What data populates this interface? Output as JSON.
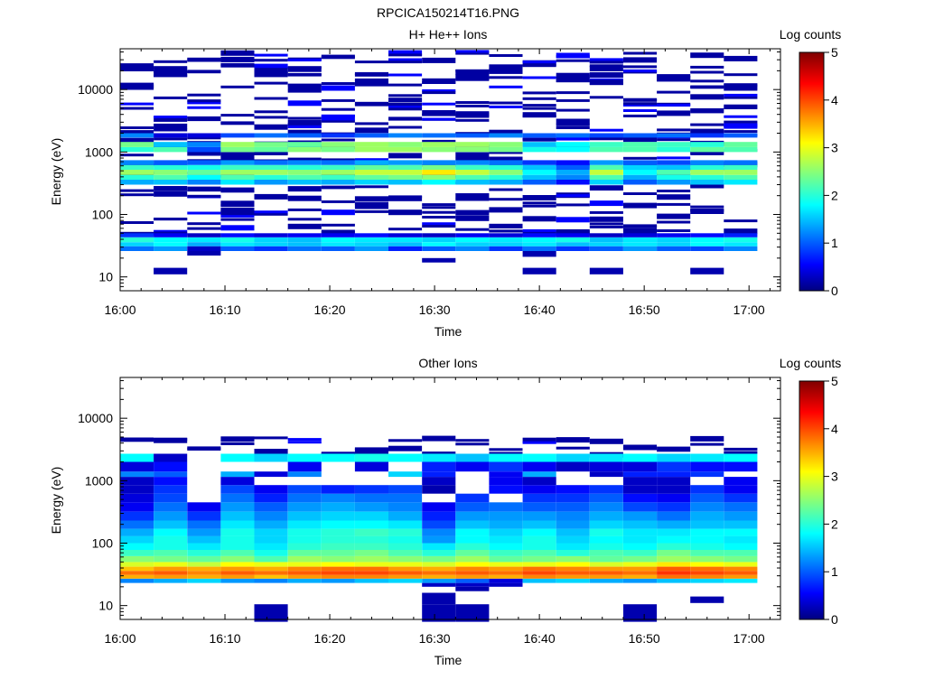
{
  "figure_title": "RPCICA150214T16.PNG",
  "colormap": [
    "#00007f",
    "#0000ff",
    "#00ffff",
    "#ffff00",
    "#ff0000",
    "#7f0000"
  ],
  "chart_data": [
    {
      "type": "heatmap",
      "title": "H+ He++ Ions",
      "xlabel": "Time",
      "ylabel": "Energy (eV)",
      "colorbar_label": "Log counts",
      "colorbar_ticks": [
        "0",
        "1",
        "2",
        "3",
        "4",
        "5"
      ],
      "clim": [
        0,
        5
      ],
      "x_ticks": [
        "16:00",
        "16:10",
        "16:20",
        "16:30",
        "16:40",
        "16:50",
        "17:00"
      ],
      "xlim_min": [
        0,
        63
      ],
      "y_scale": "log",
      "y_ticks": [
        "10",
        "100",
        "1000",
        "10000"
      ],
      "ylim": [
        6,
        45000
      ],
      "time_bins_min": [
        0,
        3.2,
        6.4,
        9.6,
        12.8,
        16,
        19.2,
        22.4,
        25.6,
        28.8,
        32,
        35.2,
        38.4,
        41.6,
        44.8,
        48,
        51.2,
        54.4,
        57.6,
        60.8
      ],
      "bands": [
        {
          "e": [
            26,
            31
          ],
          "v": [
            1.1,
            1.3,
            0.3,
            1.0,
            0.8,
            1.1,
            1.0,
            1.3,
            0.7,
            1.0,
            1.2,
            0.8,
            1.1,
            0.8,
            1.0,
            1.3,
            1.0,
            0.9,
            1.2
          ]
        },
        {
          "e": [
            31,
            36
          ],
          "v": [
            1.6,
            1.8,
            1.4,
            1.7,
            1.6,
            1.5,
            1.7,
            1.6,
            1.5,
            1.8,
            1.6,
            1.6,
            1.7,
            1.5,
            1.6,
            1.7,
            1.6,
            1.8,
            1.7
          ]
        },
        {
          "e": [
            36,
            43
          ],
          "v": [
            2.0,
            1.8,
            1.7,
            1.9,
            1.6,
            1.5,
            1.8,
            1.7,
            1.7,
            1.6,
            1.8,
            1.7,
            1.8,
            1.9,
            1.5,
            1.7,
            1.6,
            1.8,
            1.9
          ]
        },
        {
          "e": [
            43,
            50
          ],
          "v": [
            0.8,
            0.5,
            0.3,
            0.6,
            0.4,
            0.5,
            0.5,
            0.6,
            0.4,
            0.3,
            0.5,
            0.4,
            0.6,
            0.5,
            0.3,
            0.4,
            0.5,
            0.6,
            0.7
          ]
        },
        {
          "e": [
            300,
            360
          ],
          "v": [
            1.4,
            1.5,
            1.2,
            1.7,
            1.3,
            1.5,
            1.4,
            1.6,
            1.5,
            1.8,
            1.5,
            1.4,
            1.0,
            0.6,
            1.6,
            1.0,
            1.3,
            1.5,
            1.7
          ]
        },
        {
          "e": [
            360,
            430
          ],
          "v": [
            2.0,
            2.2,
            1.8,
            2.2,
            2.0,
            2.2,
            2.1,
            2.3,
            2.4,
            2.5,
            2.2,
            2.0,
            1.5,
            1.2,
            2.2,
            1.4,
            1.9,
            2.0,
            2.2
          ]
        },
        {
          "e": [
            430,
            520
          ],
          "v": [
            2.6,
            2.5,
            2.3,
            2.6,
            2.6,
            2.5,
            2.6,
            2.8,
            2.8,
            3.2,
            2.8,
            2.5,
            1.8,
            1.4,
            2.8,
            1.8,
            2.2,
            2.6,
            2.6
          ]
        },
        {
          "e": [
            520,
            620
          ],
          "v": [
            2.1,
            2.0,
            1.9,
            2.1,
            2.1,
            2.0,
            2.1,
            2.3,
            2.2,
            2.4,
            2.1,
            2.0,
            1.5,
            1.0,
            2.2,
            1.6,
            1.5,
            2.0,
            2.1
          ]
        },
        {
          "e": [
            620,
            740
          ],
          "v": [
            1.2,
            1.0,
            1.0,
            1.3,
            1.1,
            1.2,
            1.1,
            1.4,
            1.3,
            1.2,
            1.2,
            1.1,
            0.8,
            0.6,
            1.3,
            1.0,
            0.9,
            1.2,
            1.1
          ]
        },
        {
          "e": [
            1000,
            1200
          ],
          "v": [
            2.0,
            2.2,
            0.9,
            2.4,
            2.3,
            2.5,
            2.4,
            2.6,
            2.6,
            2.5,
            2.5,
            2.4,
            1.9,
            1.8,
            2.2,
            2.2,
            2.0,
            2.3,
            2.2
          ]
        },
        {
          "e": [
            1200,
            1450
          ],
          "v": [
            2.4,
            1.5,
            1.2,
            2.6,
            2.4,
            2.3,
            2.5,
            2.6,
            2.5,
            2.6,
            2.6,
            2.5,
            1.5,
            1.8,
            2.1,
            2.2,
            2.1,
            2.0,
            2.3
          ]
        },
        {
          "e": [
            1700,
            2000
          ],
          "v": [
            1.2,
            0.4,
            0.4,
            0.9,
            1.1,
            1.0,
            0.8,
            1.0,
            1.2,
            1.1,
            1.0,
            1.2,
            1.0,
            1.1,
            0.9,
            1.0,
            1.1,
            0.8,
            1.0
          ]
        }
      ],
      "sparse_level": 0.15,
      "sparse_range": [
        50,
        42000
      ],
      "low_blocks": [
        {
          "bin": 1,
          "e": [
            11,
            14
          ]
        },
        {
          "bin": 9,
          "e": [
            17,
            20
          ]
        },
        {
          "bin": 12,
          "e": [
            11,
            14
          ]
        },
        {
          "bin": 14,
          "e": [
            11,
            14
          ]
        },
        {
          "bin": 17,
          "e": [
            11,
            14
          ]
        },
        {
          "bin": 12,
          "e": [
            21,
            26
          ]
        },
        {
          "bin": 2,
          "e": [
            22,
            26
          ]
        }
      ]
    },
    {
      "type": "heatmap",
      "title": "Other Ions",
      "xlabel": "Time",
      "ylabel": "Energy (eV)",
      "colorbar_label": "Log counts",
      "colorbar_ticks": [
        "0",
        "1",
        "2",
        "3",
        "4",
        "5"
      ],
      "clim": [
        0,
        5
      ],
      "x_ticks": [
        "16:00",
        "16:10",
        "16:20",
        "16:30",
        "16:40",
        "16:50",
        "17:00"
      ],
      "xlim_min": [
        0,
        63
      ],
      "y_scale": "log",
      "y_ticks": [
        "10",
        "100",
        "1000",
        "10000"
      ],
      "ylim": [
        6,
        45000
      ],
      "time_bins_min": [
        0,
        3.2,
        6.4,
        9.6,
        12.8,
        16,
        19.2,
        22.4,
        25.6,
        28.8,
        32,
        35.2,
        38.4,
        41.6,
        44.8,
        48,
        51.2,
        54.4,
        57.6,
        60.8
      ],
      "bands": [
        {
          "e": [
            20,
            23
          ],
          "v": [
            0,
            0,
            0,
            0,
            0,
            0,
            0,
            0,
            0,
            0.3,
            0.3,
            0.3,
            0,
            0,
            0,
            0,
            0,
            0,
            0
          ]
        },
        {
          "e": [
            23,
            27
          ],
          "v": [
            1.2,
            1.4,
            1.6,
            1.3,
            1.2,
            1.4,
            1.3,
            1.5,
            1.6,
            1.3,
            1.0,
            0.4,
            1.5,
            1.6,
            1.4,
            1.3,
            1.5,
            1.6,
            1.7
          ]
        },
        {
          "e": [
            27,
            31
          ],
          "v": [
            3.5,
            3.6,
            3.5,
            3.6,
            3.4,
            3.6,
            3.7,
            3.7,
            3.6,
            3.5,
            3.6,
            3.5,
            3.7,
            3.6,
            3.6,
            3.5,
            3.8,
            3.7,
            3.6
          ]
        },
        {
          "e": [
            31,
            36
          ],
          "v": [
            3.8,
            3.9,
            3.7,
            3.9,
            3.8,
            3.9,
            4.0,
            4.0,
            3.9,
            3.8,
            3.9,
            3.8,
            4.0,
            3.9,
            3.9,
            3.8,
            4.1,
            4.0,
            3.9
          ]
        },
        {
          "e": [
            36,
            42
          ],
          "v": [
            3.4,
            3.6,
            3.5,
            3.6,
            3.5,
            3.7,
            3.8,
            3.8,
            3.6,
            3.5,
            3.7,
            3.6,
            3.8,
            3.7,
            3.6,
            3.6,
            3.9,
            3.8,
            3.7
          ]
        },
        {
          "e": [
            42,
            50
          ],
          "v": [
            2.9,
            3.0,
            2.8,
            3.1,
            3.0,
            3.0,
            3.1,
            3.0,
            3.0,
            2.9,
            3.1,
            3.0,
            3.0,
            3.1,
            2.9,
            3.0,
            3.2,
            3.1,
            3.0
          ]
        },
        {
          "e": [
            50,
            62
          ],
          "v": [
            2.5,
            2.4,
            2.3,
            2.5,
            2.2,
            2.6,
            2.5,
            2.6,
            2.5,
            2.4,
            2.6,
            2.3,
            2.4,
            2.5,
            2.3,
            2.4,
            2.6,
            2.5,
            2.4
          ]
        },
        {
          "e": [
            62,
            78
          ],
          "v": [
            2.1,
            2.2,
            2.0,
            2.2,
            1.9,
            2.3,
            2.3,
            2.4,
            2.2,
            2.0,
            2.3,
            2.1,
            2.2,
            2.0,
            2.2,
            2.1,
            2.4,
            2.2,
            2.2
          ]
        },
        {
          "e": [
            78,
            100
          ],
          "v": [
            1.8,
            1.9,
            1.7,
            1.9,
            1.7,
            2.0,
            2.1,
            2.1,
            2.0,
            1.7,
            2.0,
            1.8,
            1.9,
            1.7,
            1.9,
            1.8,
            2.0,
            1.9,
            1.8
          ]
        },
        {
          "e": [
            100,
            130
          ],
          "v": [
            1.6,
            1.9,
            1.5,
            1.9,
            1.6,
            1.9,
            2.0,
            2.0,
            1.9,
            1.3,
            1.8,
            1.7,
            1.9,
            1.6,
            1.8,
            1.7,
            1.8,
            1.8,
            1.7
          ]
        },
        {
          "e": [
            130,
            170
          ],
          "v": [
            1.4,
            1.8,
            1.3,
            1.9,
            1.6,
            1.9,
            2.0,
            2.1,
            2.0,
            1.2,
            1.8,
            1.6,
            1.8,
            1.5,
            1.9,
            1.7,
            1.7,
            1.8,
            1.8
          ]
        },
        {
          "e": [
            170,
            230
          ],
          "v": [
            1.1,
            1.5,
            1.1,
            1.7,
            1.4,
            1.7,
            1.8,
            1.8,
            1.7,
            0.9,
            1.5,
            1.4,
            1.5,
            1.3,
            1.6,
            1.5,
            1.4,
            1.5,
            1.5
          ]
        },
        {
          "e": [
            230,
            320
          ],
          "v": [
            0.8,
            1.3,
            0.8,
            1.5,
            1.2,
            1.5,
            1.6,
            1.6,
            1.4,
            0.7,
            1.3,
            1.3,
            1.3,
            1.2,
            1.4,
            1.3,
            1.1,
            1.4,
            1.3
          ]
        },
        {
          "e": [
            320,
            450
          ],
          "v": [
            0.5,
            1.1,
            0.5,
            1.3,
            1.0,
            1.3,
            1.4,
            1.3,
            1.2,
            0.5,
            1.0,
            1.1,
            1.0,
            1.0,
            1.2,
            0.9,
            0.8,
            1.2,
            1.1
          ]
        },
        {
          "e": [
            450,
            620
          ],
          "v": [
            0.4,
            0.9,
            0,
            1.1,
            0.7,
            1.1,
            1.2,
            1.1,
            1.1,
            0,
            0.8,
            0,
            0.8,
            0.8,
            1.0,
            0.6,
            0.5,
            1.0,
            0.8
          ]
        },
        {
          "e": [
            620,
            850
          ],
          "v": [
            0.3,
            0.8,
            0,
            0.9,
            0.5,
            0.9,
            0.7,
            0.8,
            0.9,
            0.2,
            0,
            0.6,
            0.5,
            0.6,
            0.8,
            0.3,
            0.3,
            0.8,
            0.5
          ]
        },
        {
          "e": [
            850,
            1150
          ],
          "v": [
            0.3,
            0.6,
            0,
            0.4,
            0,
            0,
            0,
            0,
            0,
            0.3,
            0,
            0.5,
            0.3,
            0,
            0,
            0.3,
            0.3,
            0,
            0.5
          ]
        },
        {
          "e": [
            1150,
            1400
          ],
          "v": [
            1.2,
            1.0,
            0,
            1.4,
            0.4,
            1.2,
            0,
            0,
            1.6,
            0.7,
            0,
            0.5,
            1.4,
            0,
            0.3,
            0.7,
            0.7,
            0.8,
            0
          ]
        },
        {
          "e": [
            1400,
            2000
          ],
          "v": [
            0.4,
            0.6,
            0,
            0,
            0,
            0.5,
            0,
            0.4,
            0,
            0.7,
            0.5,
            0.8,
            0.5,
            0.3,
            0.4,
            0.4,
            0.8,
            0.6,
            0.6
          ]
        },
        {
          "e": [
            2000,
            2700
          ],
          "v": [
            1.8,
            0.3,
            0,
            1.8,
            1.6,
            1.8,
            1.8,
            1.9,
            1.8,
            1.7,
            1.5,
            1.8,
            1.8,
            1.6,
            1.7,
            1.8,
            1.6,
            1.7,
            1.8
          ]
        }
      ],
      "sparse_level": 0.15,
      "sparse_range": [
        2700,
        5000
      ],
      "low_blocks": [
        {
          "bin": 4,
          "e": [
            5.5,
            10.5
          ]
        },
        {
          "bin": 9,
          "e": [
            5.5,
            10.5
          ]
        },
        {
          "bin": 10,
          "e": [
            5.5,
            10.5
          ]
        },
        {
          "bin": 15,
          "e": [
            5.5,
            10.5
          ]
        },
        {
          "bin": 9,
          "e": [
            10.5,
            16
          ]
        },
        {
          "bin": 17,
          "e": [
            11,
            14
          ]
        },
        {
          "bin": 10,
          "e": [
            17,
            20
          ]
        }
      ]
    }
  ]
}
